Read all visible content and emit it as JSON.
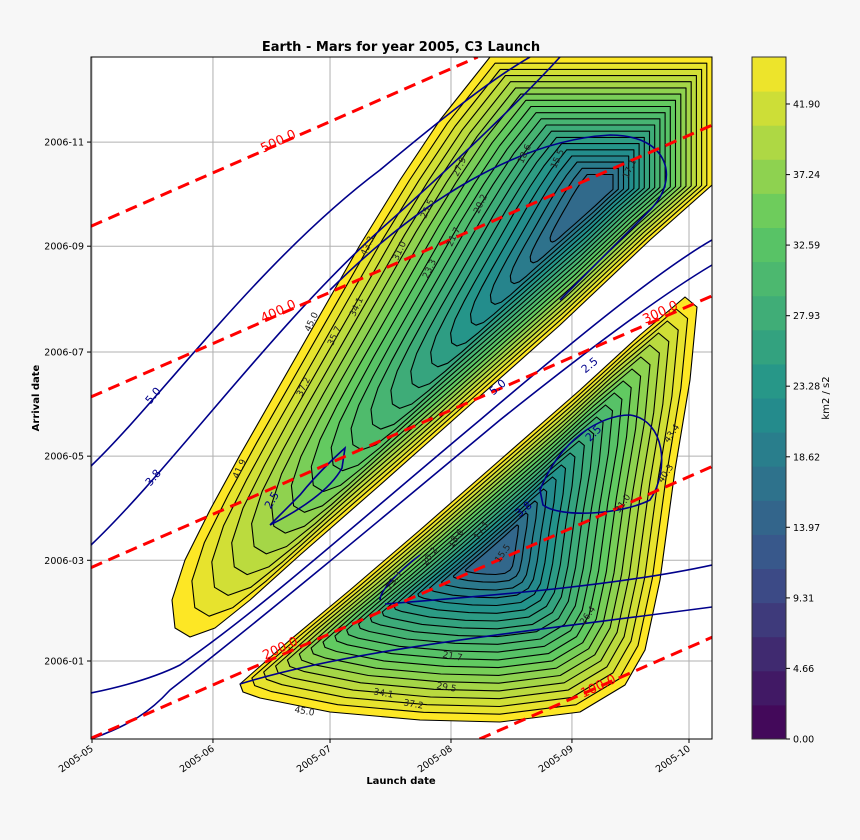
{
  "chart_data": {
    "type": "contour",
    "title": "Earth - Mars for year 2005, C3 Launch",
    "xlabel": "Launch date",
    "ylabel": "Arrival date",
    "x_ticks": [
      "2005-05",
      "2005-06",
      "2005-07",
      "2005-08",
      "2005-09",
      "2005-10"
    ],
    "y_ticks": [
      "2006-01",
      "2006-03",
      "2006-05",
      "2006-07",
      "2006-09",
      "2006-11"
    ],
    "grid": true,
    "colormap": "viridis",
    "colorbar": {
      "label": "km2 / s2",
      "ticks": [
        "0.00",
        "4.66",
        "9.31",
        "13.97",
        "18.62",
        "23.28",
        "27.93",
        "32.59",
        "37.24",
        "41.90"
      ],
      "range": [
        0,
        45
      ]
    },
    "c3_contour_labels": {
      "upper_region": [
        "45.0",
        "43.3",
        "41.9",
        "37.2",
        "35.7",
        "34.1",
        "31.0",
        "27.9",
        "25.5",
        "23.3",
        "21.7",
        "20.2",
        "18.6",
        "15.5",
        "17.1"
      ],
      "lower_region": [
        "23.3",
        "20.2",
        "18.6",
        "17.1",
        "15.5",
        "21.7",
        "26.4",
        "31.0",
        "40.3",
        "43.4",
        "29.5",
        "34.1",
        "37.2",
        "45.0"
      ]
    },
    "vinf_arrival_contour_labels": [
      "5.0",
      "3.8",
      "2.5",
      "2.5",
      "5.0",
      "3.8",
      "2.5"
    ],
    "tof_days_lines": {
      "values": [
        100,
        200,
        300,
        400,
        500
      ],
      "labels": [
        "100.0",
        "200.0",
        "300.0",
        "400.0",
        "500.0"
      ],
      "color": "#ff0000",
      "style": "dashed"
    },
    "vinf_line_color": "#00008b",
    "c3_line_color": "#000000"
  }
}
